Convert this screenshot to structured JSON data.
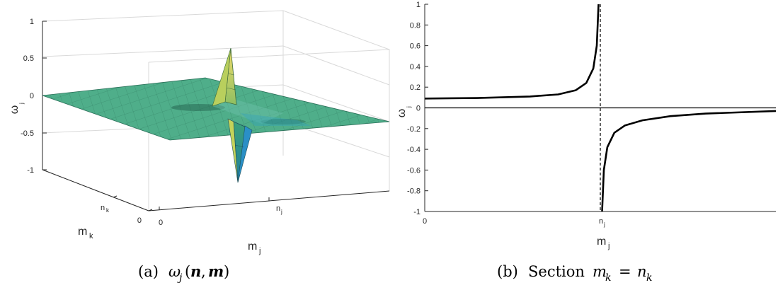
{
  "chart_data": [
    {
      "type": "surface",
      "z_label": "ω",
      "z_label_sub": "j",
      "x_label": "m",
      "x_label_sub": "j",
      "y_label": "m",
      "y_label_sub": "k",
      "z_ticks": [
        "1",
        "0.5",
        "0",
        "-0.5",
        "-1"
      ],
      "x_tick_0": "0",
      "x_tick_mark": "n",
      "x_tick_mark_sub": "j",
      "y_tick_0": "0",
      "y_tick_mark": "n",
      "y_tick_mark_sub": "k",
      "zlim": [
        -1,
        1
      ],
      "colormap": "summer",
      "caption_prefix": "(a)",
      "caption_func": "ω",
      "caption_func_sub": "j",
      "caption_n": "n",
      "caption_m": "m"
    },
    {
      "type": "line",
      "xlabel": "m",
      "xlabel_sub": "j",
      "ylabel": "ω",
      "ylabel_sub": "j",
      "ylim": [
        -1,
        1
      ],
      "y_ticks": [
        "1",
        "0.8",
        "0.6",
        "0.4",
        "0.2",
        "0",
        "-0.2",
        "-0.4",
        "-0.6",
        "-0.8",
        "-1"
      ],
      "x_tick_0": "0",
      "x_tick_mark": "n",
      "x_tick_mark_sub": "j",
      "pole_fraction": 0.5,
      "left_branch": [
        [
          0.0,
          0.09
        ],
        [
          0.15,
          0.095
        ],
        [
          0.3,
          0.11
        ],
        [
          0.38,
          0.13
        ],
        [
          0.43,
          0.17
        ],
        [
          0.46,
          0.24
        ],
        [
          0.48,
          0.38
        ],
        [
          0.49,
          0.6
        ],
        [
          0.495,
          1.0
        ]
      ],
      "right_branch": [
        [
          0.505,
          -1.0
        ],
        [
          0.51,
          -0.6
        ],
        [
          0.52,
          -0.38
        ],
        [
          0.54,
          -0.24
        ],
        [
          0.57,
          -0.17
        ],
        [
          0.62,
          -0.12
        ],
        [
          0.7,
          -0.08
        ],
        [
          0.8,
          -0.055
        ],
        [
          1.0,
          -0.03
        ]
      ],
      "caption_prefix": "(b)",
      "caption_text": "Section",
      "caption_lhs": "m",
      "caption_lhs_sub": "k",
      "caption_eq": "=",
      "caption_rhs": "n",
      "caption_rhs_sub": "k"
    }
  ]
}
